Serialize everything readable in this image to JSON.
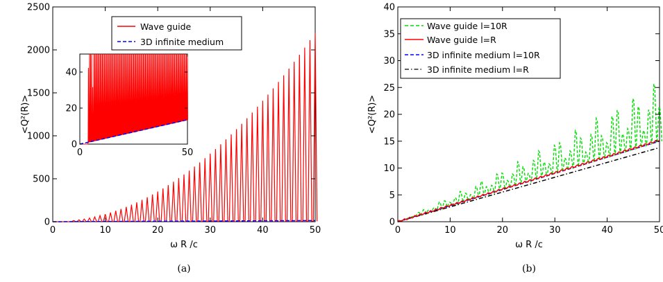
{
  "chart_data": [
    {
      "type": "line",
      "caption": "(a)",
      "xlabel": "ω R /c",
      "ylabel": "<Q²(R)>",
      "xlim": [
        0,
        50
      ],
      "ylim": [
        0,
        2500
      ],
      "xticks": [
        "0",
        "10",
        "20",
        "30",
        "40",
        "50"
      ],
      "yticks": [
        "0",
        "500",
        "1000",
        "1500",
        "2000",
        "2500"
      ],
      "legend_position": "top-center",
      "series": [
        {
          "name": "Wave guide",
          "color": "#ff0000",
          "style": "solid",
          "resonance_peaks": {
            "first_x": 4.0,
            "spacing": 1.0,
            "peak_at_50": 2200,
            "exponent": 2.0,
            "baseline_fraction": 0.0
          }
        },
        {
          "name": "3D infinite medium",
          "color": "#0000ff",
          "style": "dashed",
          "x": [
            0,
            50
          ],
          "y": [
            0,
            13.5
          ]
        }
      ],
      "inset": {
        "xlim": [
          0,
          50
        ],
        "ylim": [
          0,
          50
        ],
        "xticks": [
          "0",
          "50"
        ],
        "yticks": [
          "0",
          "20",
          "40"
        ],
        "series": [
          {
            "name": "Wave guide",
            "color": "#ff0000",
            "style": "solid",
            "clip_top": 50
          },
          {
            "name": "3D infinite medium",
            "color": "#0000ff",
            "style": "dashed",
            "x": [
              0,
              50
            ],
            "y": [
              0,
              13.5
            ]
          }
        ]
      }
    },
    {
      "type": "line",
      "caption": "(b)",
      "xlabel": "ω R /c",
      "ylabel": "<Q²(R)>",
      "xlim": [
        0,
        50
      ],
      "ylim": [
        0,
        40
      ],
      "xticks": [
        "0",
        "10",
        "20",
        "30",
        "40",
        "50"
      ],
      "yticks": [
        "0",
        "5",
        "10",
        "15",
        "20",
        "25",
        "30",
        "35",
        "40"
      ],
      "legend_position": "top-left",
      "series": [
        {
          "name": "Wave guide l=10R",
          "color": "#00dd00",
          "style": "dashed",
          "resonance_peaks": {
            "first_x": 4.0,
            "spacing": 1.0,
            "base_slope": 0.3,
            "peak_ratio_low": 1.2,
            "peak_ratio_high": 1.75
          }
        },
        {
          "name": "Wave guide l=R",
          "color": "#ff0000",
          "style": "solid",
          "x": [
            0,
            50
          ],
          "y": [
            0,
            15.2
          ]
        },
        {
          "name": "3D infinite medium l=10R",
          "color": "#0000ff",
          "style": "dashed",
          "x": [
            0,
            50
          ],
          "y": [
            0,
            15.0
          ]
        },
        {
          "name": "3D infinite medium l=R",
          "color": "#000000",
          "style": "dashdot",
          "x": [
            0,
            50
          ],
          "y": [
            0,
            13.8
          ]
        }
      ]
    }
  ]
}
